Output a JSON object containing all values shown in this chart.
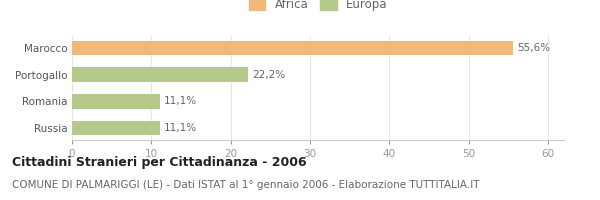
{
  "categories": [
    "Russia",
    "Romania",
    "Portogallo",
    "Marocco"
  ],
  "values": [
    11.1,
    11.1,
    22.2,
    55.6
  ],
  "labels": [
    "11,1%",
    "11,1%",
    "22,2%",
    "55,6%"
  ],
  "colors": [
    "#b5c98a",
    "#b5c98a",
    "#b5c98a",
    "#f0b87a"
  ],
  "legend": [
    {
      "label": "Africa",
      "color": "#f0b87a"
    },
    {
      "label": "Europa",
      "color": "#b5c98a"
    }
  ],
  "xlim": [
    0,
    62
  ],
  "xticks": [
    0,
    10,
    20,
    30,
    40,
    50,
    60
  ],
  "title": "Cittadini Stranieri per Cittadinanza - 2006",
  "subtitle": "COMUNE DI PALMARIGGI (LE) - Dati ISTAT al 1° gennaio 2006 - Elaborazione TUTTITALIA.IT",
  "bg_color": "#ffffff",
  "bar_height": 0.55,
  "title_fontsize": 9,
  "subtitle_fontsize": 7.5,
  "label_fontsize": 7.5,
  "tick_fontsize": 7.5,
  "legend_fontsize": 8.5
}
